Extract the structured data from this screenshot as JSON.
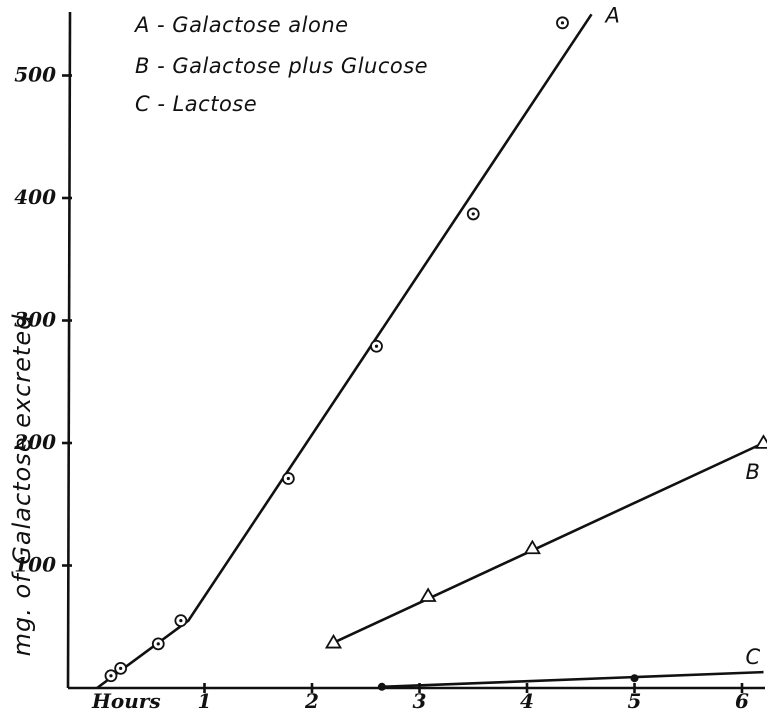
{
  "chart_data": {
    "type": "line",
    "xlabel": "Hours",
    "ylabel": "mg. of Galactose excreted",
    "x_ticks": [
      "1",
      "2",
      "3",
      "4",
      "5",
      "6"
    ],
    "y_ticks": [
      "100",
      "200",
      "300",
      "400",
      "500"
    ],
    "xlim": [
      0,
      6.3
    ],
    "ylim": [
      0,
      550
    ],
    "grid": false,
    "legend_position": "top-left",
    "legend": [
      "A - Galactose alone",
      "B - Galactose plus Glucose",
      "C - Lactose"
    ],
    "series": [
      {
        "name": "A",
        "marker": "dotted-circle",
        "points": [
          [
            0.13,
            10
          ],
          [
            0.22,
            16
          ],
          [
            0.57,
            36
          ],
          [
            0.78,
            55
          ],
          [
            1.78,
            171
          ],
          [
            2.6,
            279
          ],
          [
            3.5,
            387
          ],
          [
            4.33,
            543
          ]
        ],
        "fit_line": [
          [
            0.0,
            0
          ],
          [
            0.85,
            55
          ],
          [
            4.6,
            550
          ]
        ]
      },
      {
        "name": "B",
        "marker": "triangle",
        "points": [
          [
            2.2,
            37
          ],
          [
            3.08,
            75
          ],
          [
            4.05,
            114
          ],
          [
            6.2,
            200
          ]
        ],
        "fit_line": [
          [
            2.2,
            37
          ],
          [
            6.2,
            200
          ]
        ]
      },
      {
        "name": "C",
        "marker": "dot",
        "points": [
          [
            2.65,
            1
          ],
          [
            5.0,
            8
          ]
        ],
        "fit_line": [
          [
            2.65,
            1
          ],
          [
            6.2,
            13
          ]
        ]
      }
    ]
  }
}
